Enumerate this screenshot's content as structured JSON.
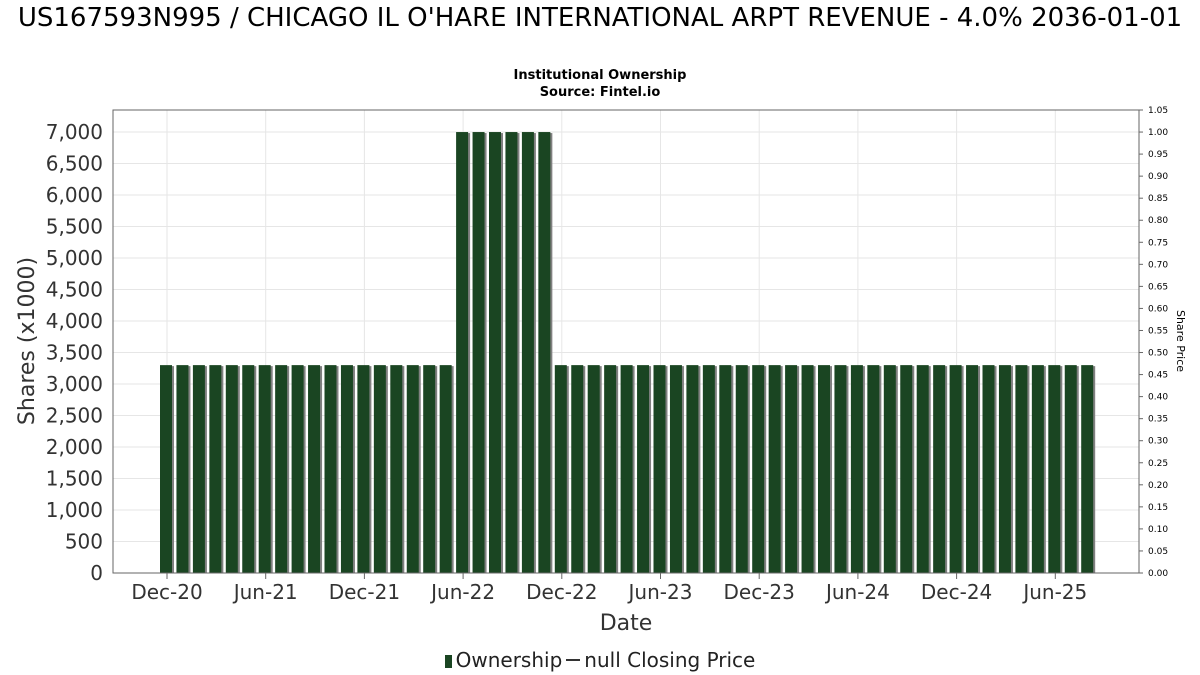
{
  "title": "US167593N995 / CHICAGO IL O'HARE INTERNATIONAL ARPT REVENUE - 4.0% 2036-01-01",
  "subtitle_lines": [
    "Institutional Ownership",
    "Source: Fintel.io"
  ],
  "legend": {
    "ownership_label": "Ownership",
    "price_label": "null Closing Price"
  },
  "colors": {
    "bar": "#1a4522",
    "bar_shadow": "#808080",
    "grid": "#e6e6e6",
    "axis": "#666666"
  },
  "chart_data": {
    "type": "bar",
    "title": "US167593N995 / CHICAGO IL O'HARE INTERNATIONAL ARPT REVENUE - 4.0% 2036-01-01",
    "xlabel": "Date",
    "ylabel": "Shares (x1000)",
    "y2label": "Share Price",
    "ylim": [
      0,
      7350
    ],
    "y2lim": [
      0,
      1.05
    ],
    "yticks": [
      "0",
      "500",
      "1,000",
      "1,500",
      "2,000",
      "2,500",
      "3,000",
      "3,500",
      "4,000",
      "4,500",
      "5,000",
      "5,500",
      "6,000",
      "6,500",
      "7,000"
    ],
    "y2ticks": [
      "0.00",
      "0.05",
      "0.10",
      "0.15",
      "0.20",
      "0.25",
      "0.30",
      "0.35",
      "0.40",
      "0.45",
      "0.50",
      "0.55",
      "0.60",
      "0.65",
      "0.70",
      "0.75",
      "0.80",
      "0.85",
      "0.90",
      "0.95",
      "1.00",
      "1.05"
    ],
    "xticks": [
      "Dec-20",
      "Jun-21",
      "Dec-21",
      "Jun-22",
      "Dec-22",
      "Jun-23",
      "Dec-23",
      "Jun-24",
      "Dec-24",
      "Jun-25"
    ],
    "grid": true,
    "legend_position": "bottom",
    "series": [
      {
        "name": "Ownership",
        "values": [
          3300,
          3300,
          3300,
          3300,
          3300,
          3300,
          3300,
          3300,
          3300,
          3300,
          3300,
          3300,
          3300,
          3300,
          3300,
          3300,
          3300,
          3300,
          7000,
          7000,
          7000,
          7000,
          7000,
          7000,
          3300,
          3300,
          3300,
          3300,
          3300,
          3300,
          3300,
          3300,
          3300,
          3300,
          3300,
          3300,
          3300,
          3300,
          3300,
          3300,
          3300,
          3300,
          3300,
          3300,
          3300,
          3300,
          3300,
          3300,
          3300,
          3300,
          3300,
          3300,
          3300,
          3300,
          3300,
          3300,
          3300
        ]
      }
    ]
  }
}
